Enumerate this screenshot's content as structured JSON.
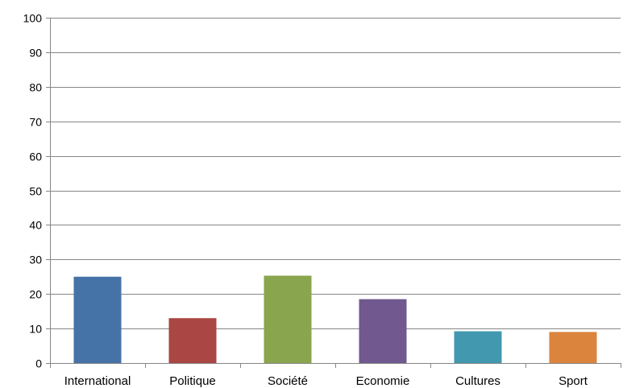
{
  "chart_data": {
    "type": "bar",
    "title": "",
    "xlabel": "",
    "ylabel": "",
    "categories": [
      "International",
      "Politique",
      "Société",
      "Economie",
      "Cultures",
      "Sport"
    ],
    "values": [
      25,
      13,
      25.3,
      18.5,
      9.2,
      9
    ],
    "colors": [
      "#4572A7",
      "#AA4643",
      "#89A54E",
      "#71588F",
      "#4198AF",
      "#DB843D"
    ],
    "ylim": [
      0,
      100
    ],
    "yticks": [
      0,
      10,
      20,
      30,
      40,
      50,
      60,
      70,
      80,
      90,
      100
    ],
    "grid": true,
    "legend": "none"
  }
}
